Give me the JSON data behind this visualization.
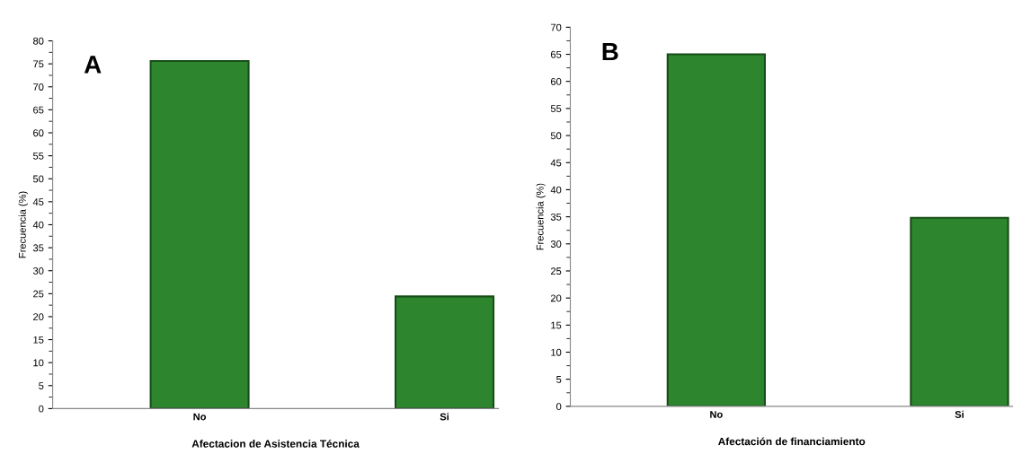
{
  "chart_data": [
    {
      "type": "bar",
      "categories": [
        "No",
        "Si"
      ],
      "values": [
        75.6,
        24.4
      ],
      "color": "#2d862d",
      "xlabel": "Afectacion de Asistencia Técnica",
      "ylabel": "Frecuencia (%)",
      "ylim": [
        0,
        80
      ],
      "yticks": [
        0,
        5,
        10,
        15,
        20,
        25,
        30,
        35,
        40,
        45,
        50,
        55,
        60,
        65,
        70,
        75,
        80
      ],
      "annotations": [
        "A"
      ],
      "grid": false,
      "legend": false
    },
    {
      "type": "bar",
      "categories": [
        "No",
        "Si"
      ],
      "values": [
        65,
        34.8
      ],
      "color": "#2d862d",
      "xlabel": "Afectación de financiamiento",
      "ylabel": "Frecuencia (%)",
      "ylim": [
        0,
        70
      ],
      "yticks": [
        0,
        5,
        10,
        15,
        20,
        25,
        30,
        35,
        40,
        45,
        50,
        55,
        60,
        65,
        70
      ],
      "annotations": [
        "B"
      ],
      "grid": false,
      "legend": false
    }
  ]
}
